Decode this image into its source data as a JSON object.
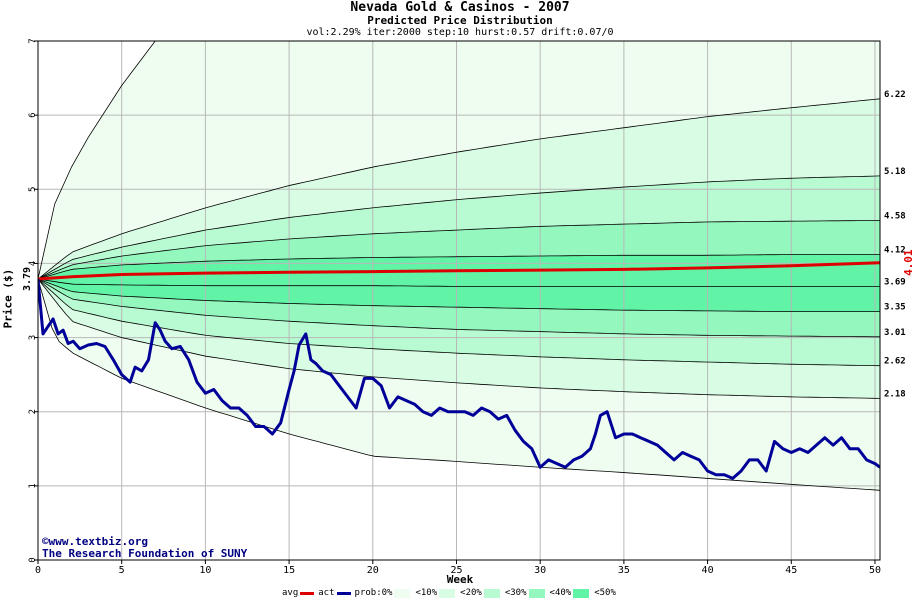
{
  "titles": {
    "main": "Nevada Gold & Casinos - 2007",
    "sub": "Predicted Price Distribution",
    "params": "vol:2.29% iter:2000 step:10 hurst:0.57 drift:0.07/0"
  },
  "credits": {
    "line1": "©www.textbiz.org",
    "line2": "The Research Foundation of SUNY"
  },
  "legend": {
    "avg_label": "avg",
    "act_label": "act",
    "prob_label": "prob:0%",
    "bands": [
      "<10%",
      "<20%",
      "<30%",
      "<40%",
      "<50%"
    ]
  },
  "colors": {
    "avg": "#dd0000",
    "act": "#000099",
    "bands": [
      "#effdf0",
      "#d8fde4",
      "#b8fbd2",
      "#94f7bd",
      "#62f4a6"
    ],
    "grid": "#b8b8b8"
  },
  "chart_data": {
    "type": "line",
    "xlabel": "Week",
    "ylabel": "Price ($)",
    "xlim": [
      0,
      50.3
    ],
    "ylim": [
      0,
      7
    ],
    "x_ticks": [
      0,
      5,
      10,
      15,
      20,
      25,
      30,
      35,
      40,
      45,
      50
    ],
    "y_ticks": [
      0,
      1,
      2,
      3,
      4,
      5,
      6,
      7
    ],
    "grid": true,
    "start_price": 3.79,
    "start_label": "3.79",
    "avg_final": 4.01,
    "avg_final_label": "4.01",
    "right_labels": [
      "6.22",
      "5.18",
      "4.58",
      "4.12",
      "3.69",
      "3.35",
      "3.01",
      "2.62",
      "2.18"
    ],
    "quantile_curves": [
      {
        "pct": "upper-outer",
        "x": [
          0,
          1,
          2,
          3,
          5,
          7
        ],
        "y": [
          3.79,
          4.8,
          5.3,
          5.7,
          6.4,
          7.0
        ]
      },
      {
        "pct": "upper-90",
        "x": [
          0,
          2,
          5,
          10,
          15,
          20,
          25,
          30,
          35,
          40,
          45,
          50.3
        ],
        "y": [
          3.79,
          4.15,
          4.4,
          4.75,
          5.05,
          5.3,
          5.5,
          5.68,
          5.83,
          5.98,
          6.1,
          6.22
        ]
      },
      {
        "pct": "upper-80",
        "x": [
          0,
          2,
          5,
          10,
          15,
          20,
          25,
          30,
          35,
          40,
          45,
          50.3
        ],
        "y": [
          3.79,
          4.05,
          4.22,
          4.45,
          4.62,
          4.75,
          4.86,
          4.95,
          5.03,
          5.1,
          5.15,
          5.18
        ]
      },
      {
        "pct": "upper-70",
        "x": [
          0,
          2,
          5,
          10,
          15,
          20,
          25,
          30,
          35,
          40,
          45,
          50.3
        ],
        "y": [
          3.79,
          3.98,
          4.1,
          4.24,
          4.33,
          4.4,
          4.45,
          4.5,
          4.53,
          4.56,
          4.57,
          4.58
        ]
      },
      {
        "pct": "upper-60",
        "x": [
          0,
          2,
          5,
          10,
          15,
          20,
          25,
          30,
          35,
          40,
          45,
          50.3
        ],
        "y": [
          3.79,
          3.92,
          3.98,
          4.03,
          4.06,
          4.08,
          4.09,
          4.1,
          4.11,
          4.11,
          4.12,
          4.12
        ]
      },
      {
        "pct": "lower-40",
        "x": [
          0,
          2,
          5,
          10,
          15,
          20,
          25,
          30,
          35,
          40,
          45,
          50.3
        ],
        "y": [
          3.79,
          3.72,
          3.71,
          3.7,
          3.7,
          3.7,
          3.69,
          3.69,
          3.69,
          3.69,
          3.69,
          3.69
        ]
      },
      {
        "pct": "lower-30",
        "x": [
          0,
          2,
          5,
          10,
          15,
          20,
          25,
          30,
          35,
          40,
          45,
          50.3
        ],
        "y": [
          3.79,
          3.62,
          3.56,
          3.5,
          3.46,
          3.43,
          3.41,
          3.39,
          3.37,
          3.36,
          3.35,
          3.35
        ]
      },
      {
        "pct": "lower-20",
        "x": [
          0,
          2,
          5,
          10,
          15,
          20,
          25,
          30,
          35,
          40,
          45,
          50.3
        ],
        "y": [
          3.79,
          3.52,
          3.42,
          3.3,
          3.22,
          3.16,
          3.11,
          3.08,
          3.05,
          3.03,
          3.02,
          3.01
        ]
      },
      {
        "pct": "lower-10",
        "x": [
          0,
          2,
          5,
          10,
          15,
          20,
          25,
          30,
          35,
          40,
          45,
          50.3
        ],
        "y": [
          3.79,
          3.38,
          3.22,
          3.03,
          2.92,
          2.85,
          2.79,
          2.74,
          2.7,
          2.67,
          2.64,
          2.62
        ]
      },
      {
        "pct": "lower-5",
        "x": [
          0,
          2,
          5,
          10,
          15,
          20,
          25,
          30,
          35,
          40,
          45,
          50.3
        ],
        "y": [
          3.79,
          3.22,
          3.0,
          2.75,
          2.58,
          2.47,
          2.39,
          2.32,
          2.27,
          2.23,
          2.2,
          2.18
        ]
      },
      {
        "pct": "lower-outer",
        "x": [
          0,
          1,
          2,
          5,
          10,
          15,
          20,
          25,
          30,
          35,
          40,
          45,
          50.3
        ],
        "y": [
          3.79,
          3.0,
          2.8,
          2.45,
          2.05,
          1.7,
          1.4,
          1.33,
          1.25,
          1.18,
          1.1,
          1.02,
          0.94
        ]
      }
    ],
    "series": [
      {
        "name": "avg",
        "x": [
          0,
          2,
          5,
          10,
          15,
          20,
          25,
          30,
          35,
          40,
          45,
          50.3
        ],
        "y": [
          3.79,
          3.82,
          3.85,
          3.87,
          3.88,
          3.89,
          3.9,
          3.91,
          3.92,
          3.94,
          3.97,
          4.01
        ]
      },
      {
        "name": "act",
        "x": [
          0,
          0.3,
          0.6,
          0.9,
          1.2,
          1.5,
          1.8,
          2.1,
          2.5,
          3.0,
          3.5,
          4.0,
          4.5,
          5.0,
          5.5,
          5.8,
          6.2,
          6.6,
          7.0,
          7.3,
          7.6,
          8.0,
          8.5,
          9.0,
          9.5,
          10.0,
          10.5,
          11.0,
          11.5,
          12.0,
          12.5,
          13.0,
          13.5,
          14.0,
          14.5,
          15.0,
          15.3,
          15.6,
          16.0,
          16.3,
          16.6,
          17.0,
          17.5,
          18.0,
          18.5,
          19.0,
          19.5,
          20.0,
          20.5,
          21.0,
          21.5,
          22.0,
          22.5,
          23.0,
          23.5,
          24.0,
          24.5,
          25.0,
          25.5,
          26.0,
          26.5,
          27.0,
          27.5,
          28.0,
          28.5,
          29.0,
          29.5,
          30.0,
          30.5,
          31.0,
          31.5,
          32.0,
          32.5,
          33.0,
          33.3,
          33.6,
          34.0,
          34.5,
          35.0,
          35.5,
          36.0,
          36.5,
          37.0,
          37.5,
          38.0,
          38.5,
          39.0,
          39.5,
          40.0,
          40.5,
          41.0,
          41.5,
          42.0,
          42.5,
          43.0,
          43.5,
          44.0,
          44.5,
          45.0,
          45.5,
          46.0,
          46.5,
          47.0,
          47.5,
          48.0,
          48.5,
          49.0,
          49.5,
          50.0,
          50.3
        ],
        "y": [
          3.79,
          3.05,
          3.15,
          3.25,
          3.05,
          3.1,
          2.92,
          2.95,
          2.85,
          2.9,
          2.92,
          2.88,
          2.7,
          2.5,
          2.4,
          2.6,
          2.55,
          2.7,
          3.2,
          3.1,
          2.95,
          2.85,
          2.88,
          2.7,
          2.4,
          2.25,
          2.3,
          2.15,
          2.05,
          2.05,
          1.95,
          1.8,
          1.8,
          1.7,
          1.85,
          2.3,
          2.55,
          2.9,
          3.05,
          2.7,
          2.65,
          2.55,
          2.5,
          2.35,
          2.2,
          2.05,
          2.45,
          2.45,
          2.35,
          2.05,
          2.2,
          2.15,
          2.1,
          2.0,
          1.95,
          2.05,
          2.0,
          2.0,
          2.0,
          1.95,
          2.05,
          2.0,
          1.9,
          1.95,
          1.75,
          1.6,
          1.5,
          1.25,
          1.35,
          1.3,
          1.25,
          1.35,
          1.4,
          1.5,
          1.7,
          1.95,
          2.0,
          1.65,
          1.7,
          1.7,
          1.65,
          1.6,
          1.55,
          1.45,
          1.35,
          1.45,
          1.4,
          1.35,
          1.2,
          1.15,
          1.15,
          1.1,
          1.2,
          1.35,
          1.35,
          1.2,
          1.6,
          1.5,
          1.45,
          1.5,
          1.45,
          1.55,
          1.65,
          1.55,
          1.65,
          1.5,
          1.5,
          1.35,
          1.3,
          1.25
        ]
      }
    ]
  }
}
